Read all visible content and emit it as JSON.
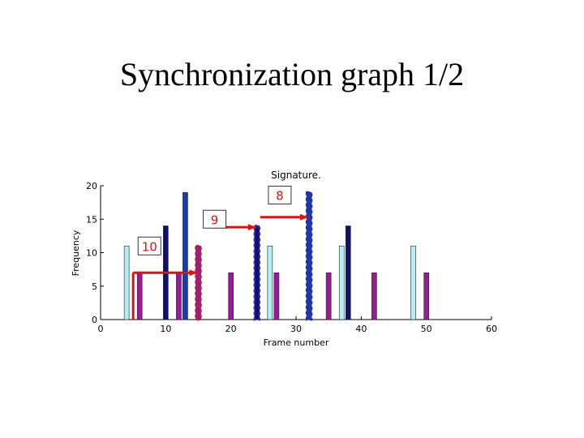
{
  "slide": {
    "title": "Synchronization graph 1/2"
  },
  "chart_data": {
    "type": "bar",
    "title": "Signature.",
    "xlabel": "Frame number",
    "ylabel": "Frequency",
    "xlim": [
      0,
      60
    ],
    "ylim": [
      0,
      20
    ],
    "xticks": [
      "0",
      "10",
      "20",
      "30",
      "40",
      "50",
      "60"
    ],
    "yticks": [
      "0",
      "5",
      "10",
      "15",
      "20"
    ],
    "grid": false,
    "bars": [
      {
        "x": 4,
        "value": 11,
        "color": "#b0f0f0"
      },
      {
        "x": 6,
        "value": 7,
        "color": "#9a1a9a"
      },
      {
        "x": 10,
        "value": 14,
        "color": "#101070"
      },
      {
        "x": 12,
        "value": 7,
        "color": "#9a1a9a"
      },
      {
        "x": 13,
        "value": 19,
        "color": "#1a3ab0"
      },
      {
        "x": 15,
        "value": 11,
        "color": "#9a1a9a"
      },
      {
        "x": 20,
        "value": 7,
        "color": "#9a1a9a"
      },
      {
        "x": 24,
        "value": 14,
        "color": "#101070"
      },
      {
        "x": 26,
        "value": 11,
        "color": "#b0f0f0"
      },
      {
        "x": 27,
        "value": 7,
        "color": "#9a1a9a"
      },
      {
        "x": 32,
        "value": 19,
        "color": "#1a3ab0"
      },
      {
        "x": 35,
        "value": 7,
        "color": "#9a1a9a"
      },
      {
        "x": 37,
        "value": 11,
        "color": "#b0f0f0"
      },
      {
        "x": 38,
        "value": 14,
        "color": "#101070"
      },
      {
        "x": 42,
        "value": 7,
        "color": "#9a1a9a"
      },
      {
        "x": 48,
        "value": 11,
        "color": "#b0f0f0"
      },
      {
        "x": 50,
        "value": 7,
        "color": "#9a1a9a"
      }
    ],
    "dashed_bars": [
      {
        "x": 15,
        "value": 11,
        "color": "#b02a2a"
      },
      {
        "x": 24,
        "value": 14,
        "color": "#2a2ab0"
      },
      {
        "x": 32,
        "value": 19,
        "color": "#2a2ab0"
      }
    ],
    "annotations": [
      {
        "label": "10",
        "label_x": 7.5,
        "label_y": 11,
        "from": [
          5,
          7
        ],
        "to": [
          15,
          7
        ]
      },
      {
        "label": "9",
        "label_x": 17.5,
        "label_y": 15,
        "from": [
          17.5,
          13.8
        ],
        "to": [
          24,
          13.8
        ]
      },
      {
        "label": "8",
        "label_x": 27.5,
        "label_y": 18.6,
        "from": [
          24.5,
          15.3
        ],
        "to": [
          32,
          15.3
        ]
      }
    ],
    "annotation_color": "#dd1111"
  }
}
